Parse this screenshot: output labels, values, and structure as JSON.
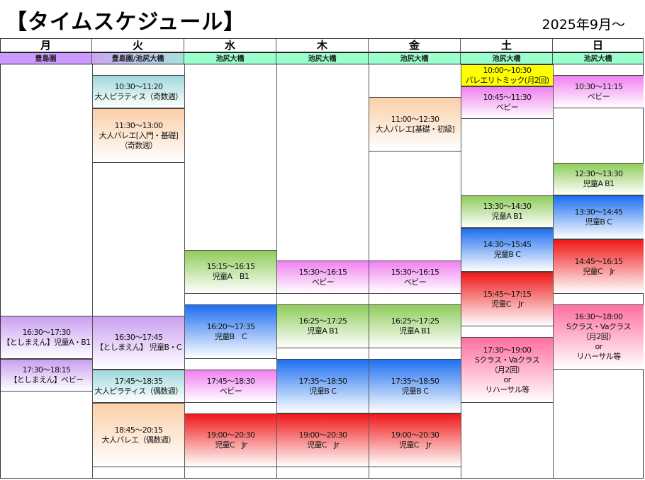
{
  "title": "【タイムスケジュール】",
  "period": "2025年9月〜",
  "days": [
    {
      "day": "月",
      "location": "豊島園",
      "loc_color": "#cc99ff"
    },
    {
      "day": "火",
      "location": "豊島園/池尻大橋",
      "loc_color": "#b0c4e8"
    },
    {
      "day": "水",
      "location": "池尻大橋",
      "loc_color": "#99ffcc"
    },
    {
      "day": "木",
      "location": "池尻大橋",
      "loc_color": "#99ffcc"
    },
    {
      "day": "金",
      "location": "池尻大橋",
      "loc_color": "#99ffcc"
    },
    {
      "day": "土",
      "location": "池尻大橋",
      "loc_color": "#99ffcc"
    },
    {
      "day": "日",
      "location": "池尻大橋",
      "loc_color": "#99ffcc"
    }
  ],
  "classes": [
    {
      "day": "月",
      "lines": [
        "16:30〜17:30",
        "【としまえん】児童A・B1"
      ],
      "color": "#c9a0f0"
    },
    {
      "day": "月",
      "lines": [
        "17:30〜18:15",
        "【としまえん】ベビー"
      ],
      "color": "#c9a0f0"
    },
    {
      "day": "火",
      "lines": [
        "10:30〜11:20",
        "大人ピラティス（奇数週）"
      ],
      "color": "#9fd9dc"
    },
    {
      "day": "火",
      "lines": [
        "11:30〜13:00",
        "大人バレエ[入門・基礎]",
        "（奇数週）"
      ],
      "color": "#fbcfa8"
    },
    {
      "day": "火",
      "lines": [
        "16:30〜17:45",
        "【としまえん】 児童B・C"
      ],
      "color": "#c9a0f0"
    },
    {
      "day": "火",
      "lines": [
        "17:45〜18:35",
        "大人ピラティス（偶数週）"
      ],
      "color": "#9fd9dc"
    },
    {
      "day": "火",
      "lines": [
        "18:45〜20:15",
        "大人バレエ（偶数週）"
      ],
      "color": "#fbcfa8"
    },
    {
      "day": "水",
      "lines": [
        "15:15〜16:15",
        "児童A　B1"
      ],
      "color": "#8fcc5a"
    },
    {
      "day": "水",
      "lines": [
        "16:20〜17:35",
        "児童B　C"
      ],
      "color": "#1e6ff0"
    },
    {
      "day": "水",
      "lines": [
        "17:45〜18:30",
        "ベビー"
      ],
      "color": "#f080f0"
    },
    {
      "day": "水",
      "lines": [
        "19:00〜20:30",
        "児童C　Jr"
      ],
      "color": "#f01818"
    },
    {
      "day": "木",
      "lines": [
        "15:30〜16:15",
        "ベビー"
      ],
      "color": "#f080f0"
    },
    {
      "day": "木",
      "lines": [
        "16:25〜17:25",
        "児童A B1"
      ],
      "color": "#8fcc5a"
    },
    {
      "day": "木",
      "lines": [
        "17:35〜18:50",
        "児童B C"
      ],
      "color": "#1e6ff0"
    },
    {
      "day": "木",
      "lines": [
        "19:00〜20:30",
        "児童C　Jr"
      ],
      "color": "#f01818"
    },
    {
      "day": "金",
      "lines": [
        "11:00〜12:30",
        "大人バレエ[基礎・初級]"
      ],
      "color": "#fbcfa8"
    },
    {
      "day": "金",
      "lines": [
        "15:30〜16:15",
        "ベビー"
      ],
      "color": "#f080f0"
    },
    {
      "day": "金",
      "lines": [
        "16:25〜17:25",
        "児童A B1"
      ],
      "color": "#8fcc5a"
    },
    {
      "day": "金",
      "lines": [
        "17:35〜18:50",
        "児童B C"
      ],
      "color": "#1e6ff0"
    },
    {
      "day": "金",
      "lines": [
        "19:00〜20:30",
        "児童C　Jr"
      ],
      "color": "#f01818"
    },
    {
      "day": "土",
      "lines": [
        "10:00〜10:30",
        "バレエリトミック(月2回)"
      ],
      "color": "#ffff00"
    },
    {
      "day": "土",
      "lines": [
        "10:45〜11:30",
        "ベビー"
      ],
      "color": "#f080f0"
    },
    {
      "day": "土",
      "lines": [
        "13:30〜14:30",
        "児童A B1"
      ],
      "color": "#8fcc5a"
    },
    {
      "day": "土",
      "lines": [
        "14:30〜15:45",
        "児童B C"
      ],
      "color": "#1e6ff0"
    },
    {
      "day": "土",
      "lines": [
        "15:45〜17:15",
        "児童C　Jr"
      ],
      "color": "#f01818"
    },
    {
      "day": "土",
      "lines": [
        "17:30〜19:00",
        "Sクラス・Vaクラス",
        "（月2回）",
        "or",
        "リハーサル等"
      ],
      "color": "#ff6fa0"
    },
    {
      "day": "日",
      "lines": [
        "10:30〜11:15",
        "ベビー"
      ],
      "color": "#f080f0"
    },
    {
      "day": "日",
      "lines": [
        "12:30〜13:30",
        "児童A B1"
      ],
      "color": "#8fcc5a"
    },
    {
      "day": "日",
      "lines": [
        "13:30〜14:45",
        "児童B C"
      ],
      "color": "#1e6ff0"
    },
    {
      "day": "日",
      "lines": [
        "14:45〜16:15",
        "児童C　Jr"
      ],
      "color": "#f01818"
    },
    {
      "day": "日",
      "lines": [
        "16:30〜18:00",
        "Sクラス・Vaクラス",
        "（月2回）",
        "or",
        "リハーサル等"
      ],
      "color": "#ff6fa0"
    }
  ]
}
